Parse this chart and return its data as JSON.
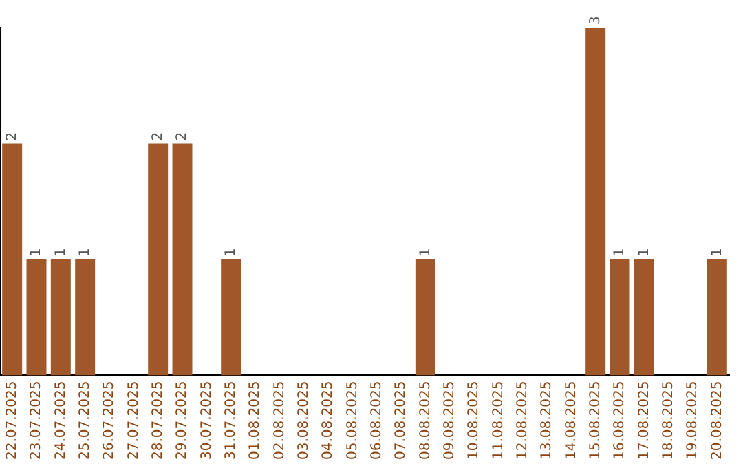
{
  "chart_data": {
    "type": "bar",
    "categories": [
      "22.07.2025",
      "23.07.2025",
      "24.07.2025",
      "25.07.2025",
      "26.07.2025",
      "27.07.2025",
      "28.07.2025",
      "29.07.2025",
      "30.07.2025",
      "31.07.2025",
      "01.08.2025",
      "02.08.2025",
      "03.08.2025",
      "04.08.2025",
      "05.08.2025",
      "06.08.2025",
      "07.08.2025",
      "08.08.2025",
      "09.08.2025",
      "10.08.2025",
      "11.08.2025",
      "12.08.2025",
      "13.08.2025",
      "14.08.2025",
      "15.08.2025",
      "16.08.2025",
      "17.08.2025",
      "18.08.2025",
      "19.08.2025",
      "20.08.2025"
    ],
    "values": [
      2,
      1,
      1,
      1,
      0,
      0,
      2,
      2,
      0,
      1,
      0,
      0,
      0,
      0,
      0,
      0,
      0,
      1,
      0,
      0,
      0,
      0,
      0,
      0,
      3,
      1,
      1,
      0,
      0,
      1
    ],
    "value_labels": [
      "2",
      "1",
      "1",
      "1",
      null,
      null,
      "2",
      "2",
      null,
      "1",
      null,
      null,
      null,
      null,
      null,
      null,
      null,
      "1",
      null,
      null,
      null,
      null,
      null,
      null,
      "3",
      "1",
      "1",
      null,
      null,
      "1"
    ],
    "color": "#a0572a",
    "ylim": [
      0,
      3
    ],
    "tick_labels": "x",
    "grid": false,
    "legend": false
  }
}
